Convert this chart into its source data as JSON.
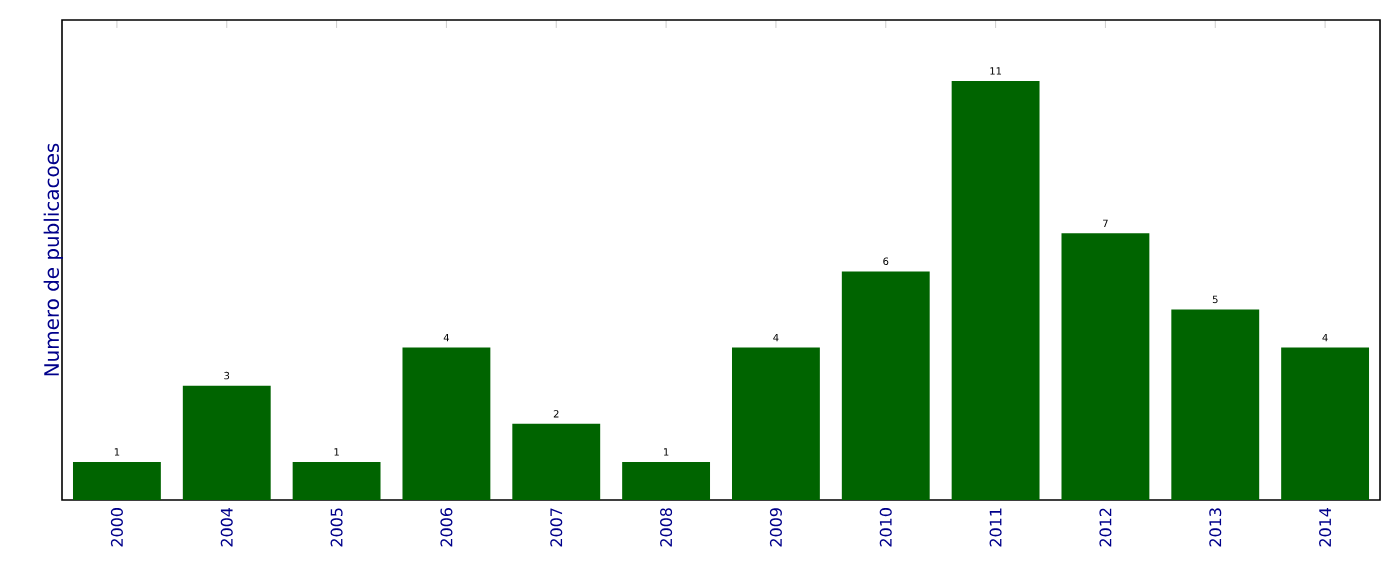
{
  "chart_data": {
    "type": "bar",
    "ylabel": "Numero de publicacoes",
    "categories": [
      "2000",
      "2004",
      "2005",
      "2006",
      "2007",
      "2008",
      "2009",
      "2010",
      "2011",
      "2012",
      "2013",
      "2014"
    ],
    "values": [
      1,
      3,
      1,
      4,
      2,
      1,
      4,
      6,
      11,
      7,
      5,
      4
    ],
    "color": "#006400",
    "ylim": [
      0,
      12.6
    ],
    "tick_labels": "x",
    "data_labels": true
  }
}
